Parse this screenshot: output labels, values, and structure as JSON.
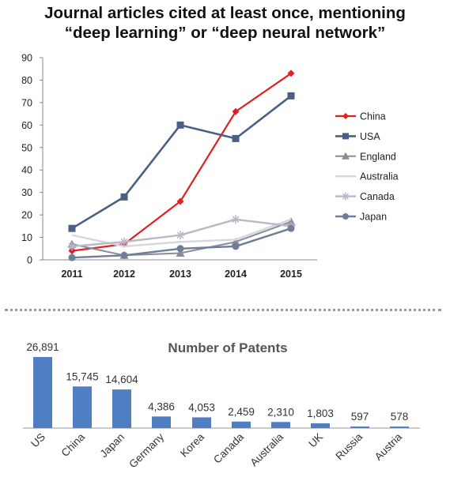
{
  "chart_data": [
    {
      "type": "line",
      "title_lines": [
        "Journal articles cited at least once, mentioning",
        "“deep learning” or “deep neural network”"
      ],
      "x": [
        2011,
        2012,
        2013,
        2014,
        2015
      ],
      "ylim": [
        0,
        90
      ],
      "yticks": [
        0,
        10,
        20,
        30,
        40,
        50,
        60,
        70,
        80,
        90
      ],
      "grid": false,
      "legend": "right",
      "series": [
        {
          "name": "China",
          "values": [
            4,
            7,
            26,
            66,
            83
          ],
          "color": "#e02020",
          "marker": "diamond",
          "width": 2.2
        },
        {
          "name": "USA",
          "values": [
            14,
            28,
            60,
            54,
            73
          ],
          "color": "#4a5f86",
          "marker": "square",
          "width": 2.6
        },
        {
          "name": "England",
          "values": [
            7,
            2,
            3,
            8,
            17
          ],
          "color": "#8c8c98",
          "marker": "triangle",
          "width": 2
        },
        {
          "name": "Australia",
          "values": [
            11,
            6,
            8,
            9,
            18
          ],
          "color": "#d6d6e0",
          "marker": "none",
          "width": 2.4
        },
        {
          "name": "Canada",
          "values": [
            6,
            8,
            11,
            18,
            15
          ],
          "color": "#b8b8c8",
          "marker": "star",
          "width": 2.4
        },
        {
          "name": "Japan",
          "values": [
            1,
            2,
            5,
            6,
            14
          ],
          "color": "#6f7d98",
          "marker": "circle",
          "width": 2.4
        }
      ]
    },
    {
      "type": "bar",
      "title": "Number of Patents",
      "categories": [
        "US",
        "China",
        "Japan",
        "Germany",
        "Korea",
        "Canada",
        "Australia",
        "UK",
        "Russia",
        "Austria"
      ],
      "values": [
        26891,
        15745,
        14604,
        4386,
        4053,
        2459,
        2310,
        1803,
        597,
        578
      ],
      "value_labels": [
        "26,891",
        "15,745",
        "14,604",
        "4,386",
        "4,053",
        "2,459",
        "2,310",
        "1,803",
        "597",
        "578"
      ],
      "color": "#4f7ec3",
      "ylim": [
        0,
        26891
      ]
    }
  ]
}
